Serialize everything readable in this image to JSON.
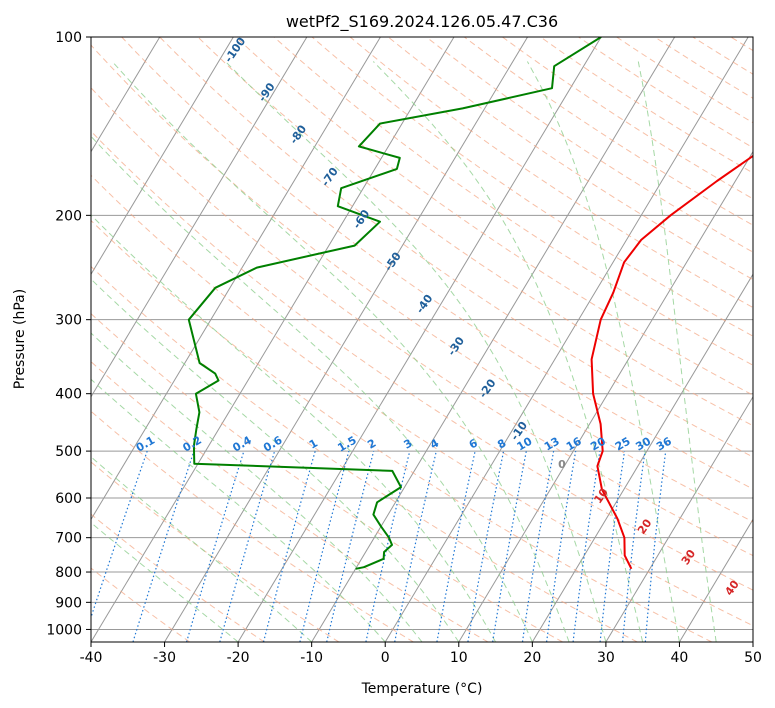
{
  "chart_data": {
    "type": "line",
    "title": "wetPf2_S169.2024.126.05.47.C36",
    "xlabel": "Temperature (°C)",
    "ylabel": "Pressure (hPa)",
    "xlim": [
      -40,
      50
    ],
    "ylim": [
      1050,
      100
    ],
    "y_scale": "log",
    "x_ticks": [
      -40,
      -30,
      -20,
      -10,
      0,
      10,
      20,
      30,
      40,
      50
    ],
    "y_ticks": [
      100,
      200,
      300,
      400,
      500,
      600,
      700,
      800,
      900,
      1000
    ],
    "grid": true,
    "legend": "none",
    "series": [
      {
        "color": "#ee0000",
        "points": [
          [
            21.0,
            100
          ],
          [
            18.5,
            115
          ],
          [
            13.0,
            145
          ],
          [
            7.5,
            175
          ],
          [
            4.0,
            200
          ],
          [
            2.0,
            220
          ],
          [
            1.5,
            240
          ],
          [
            2.5,
            270
          ],
          [
            3.0,
            300
          ],
          [
            5.0,
            350
          ],
          [
            8.0,
            400
          ],
          [
            11.5,
            450
          ],
          [
            14.0,
            500
          ],
          [
            14.5,
            530
          ],
          [
            17.0,
            580
          ],
          [
            21.5,
            650
          ],
          [
            24.0,
            700
          ],
          [
            25.5,
            750
          ],
          [
            27.5,
            790
          ]
        ]
      },
      {
        "color": "#008000",
        "points": [
          [
            -20.0,
            100
          ],
          [
            -24.0,
            112
          ],
          [
            -22.5,
            122
          ],
          [
            -33.0,
            132
          ],
          [
            -43.0,
            140
          ],
          [
            -44.0,
            153
          ],
          [
            -37.5,
            160
          ],
          [
            -37.0,
            167
          ],
          [
            -43.0,
            180
          ],
          [
            -42.0,
            193
          ],
          [
            -35.0,
            205
          ],
          [
            -36.5,
            225
          ],
          [
            -48.0,
            245
          ],
          [
            -52.0,
            265
          ],
          [
            -53.0,
            300
          ],
          [
            -48.0,
            355
          ],
          [
            -45.0,
            370
          ],
          [
            -44.0,
            380
          ],
          [
            -46.0,
            400
          ],
          [
            -44.0,
            430
          ],
          [
            -43.0,
            460
          ],
          [
            -42.0,
            490
          ],
          [
            -40.5,
            525
          ],
          [
            -13.0,
            540
          ],
          [
            -10.5,
            575
          ],
          [
            -12.5,
            610
          ],
          [
            -12.0,
            640
          ],
          [
            -10.0,
            670
          ],
          [
            -8.0,
            700
          ],
          [
            -7.0,
            720
          ],
          [
            -7.5,
            740
          ],
          [
            -7.0,
            760
          ],
          [
            -9.0,
            785
          ],
          [
            -10.0,
            790
          ]
        ]
      }
    ],
    "dry_adiabat_labels": [
      "-100",
      "-90",
      "-80",
      "-70",
      "-60",
      "-50",
      "-40",
      "-30",
      "-20",
      "-10"
    ],
    "zero_label": "0",
    "warm_adiabat_labels": [
      "10",
      "20",
      "30",
      "40"
    ],
    "mixing_ratio_labels": [
      "0.1",
      "0.2",
      "0.4",
      "0.6",
      "1",
      "1.5",
      "2",
      "3",
      "4",
      "6",
      "8",
      "10",
      "13",
      "16",
      "20",
      "25",
      "30",
      "36"
    ],
    "colors": {
      "temperature": "#ee0000",
      "dewpoint": "#008000",
      "isotherm": "#999999",
      "dry_adiabat": "#f4a582",
      "moist_adiabat": "#8fce8f",
      "mixing_ratio": "#1f77d4",
      "theta_label": "#1f5f9a",
      "warm_label": "#d62728",
      "zero_label": "#888888"
    }
  }
}
